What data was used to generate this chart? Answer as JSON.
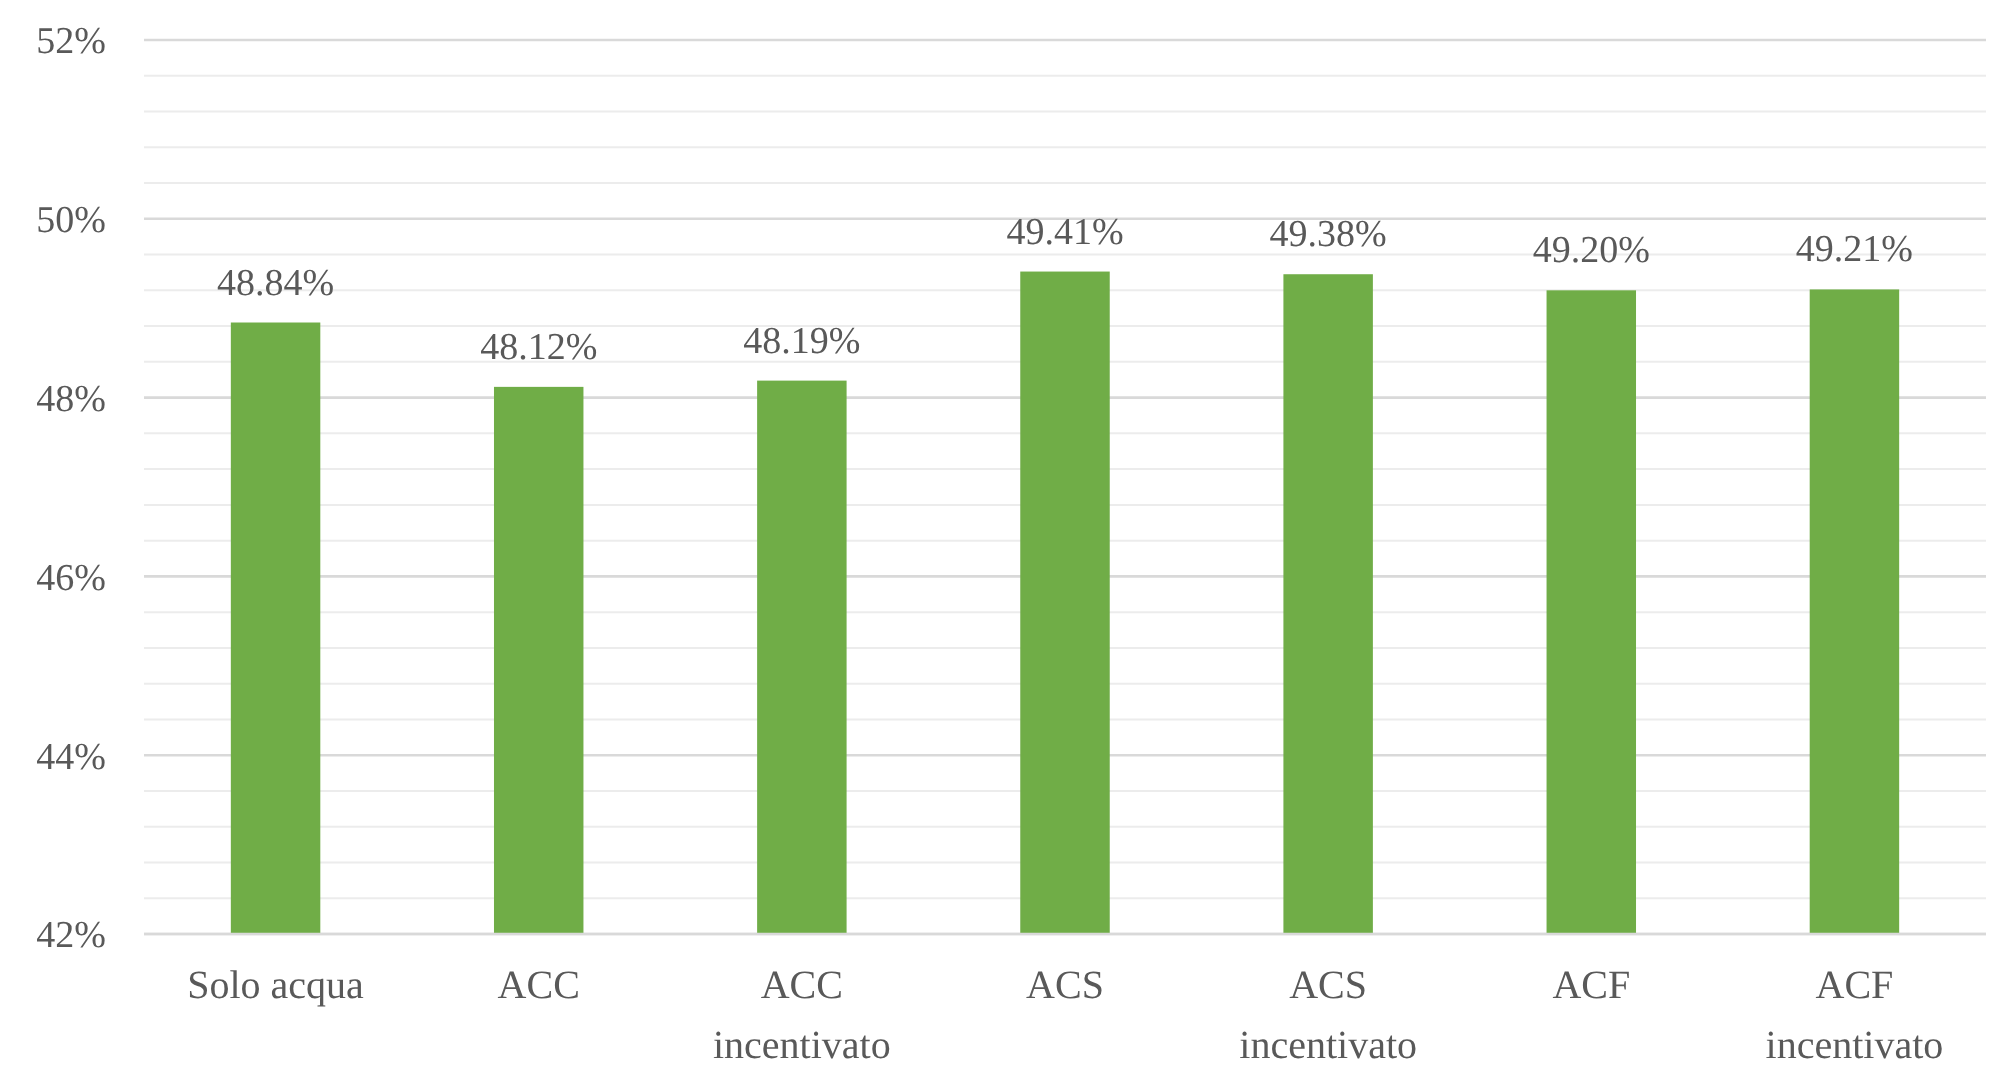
{
  "chart_data": {
    "type": "bar",
    "categories": [
      "Solo acqua",
      "ACC",
      "ACC incentivato",
      "ACS",
      "ACS incentivato",
      "ACF",
      "ACF incentivato"
    ],
    "values": [
      48.84,
      48.12,
      48.19,
      49.41,
      49.38,
      49.2,
      49.21
    ],
    "value_labels": [
      "48.84%",
      "48.12%",
      "48.19%",
      "49.41%",
      "49.38%",
      "49.20%",
      "49.21%"
    ],
    "color": "#70ad47",
    "ylim": [
      42,
      52
    ],
    "yticks": [
      {
        "value": 42,
        "label": "42%"
      },
      {
        "value": 42.4,
        "label": null
      },
      {
        "value": 42.8,
        "label": null
      },
      {
        "value": 43.2,
        "label": null
      },
      {
        "value": 43.6,
        "label": null
      },
      {
        "value": 44,
        "label": "44%"
      },
      {
        "value": 44.4,
        "label": null
      },
      {
        "value": 44.8,
        "label": null
      },
      {
        "value": 45.2,
        "label": null
      },
      {
        "value": 45.6,
        "label": null
      },
      {
        "value": 46,
        "label": "46%"
      },
      {
        "value": 46.4,
        "label": null
      },
      {
        "value": 46.8,
        "label": null
      },
      {
        "value": 47.2,
        "label": null
      },
      {
        "value": 47.6,
        "label": null
      },
      {
        "value": 48,
        "label": "48%"
      },
      {
        "value": 48.4,
        "label": null
      },
      {
        "value": 48.8,
        "label": null
      },
      {
        "value": 49.2,
        "label": null
      },
      {
        "value": 49.6,
        "label": null
      },
      {
        "value": 50,
        "label": "50%"
      },
      {
        "value": 50.4,
        "label": null
      },
      {
        "value": 50.8,
        "label": null
      },
      {
        "value": 51.2,
        "label": null
      },
      {
        "value": 51.6,
        "label": null
      },
      {
        "value": 52,
        "label": "52%"
      }
    ],
    "grid": true
  }
}
